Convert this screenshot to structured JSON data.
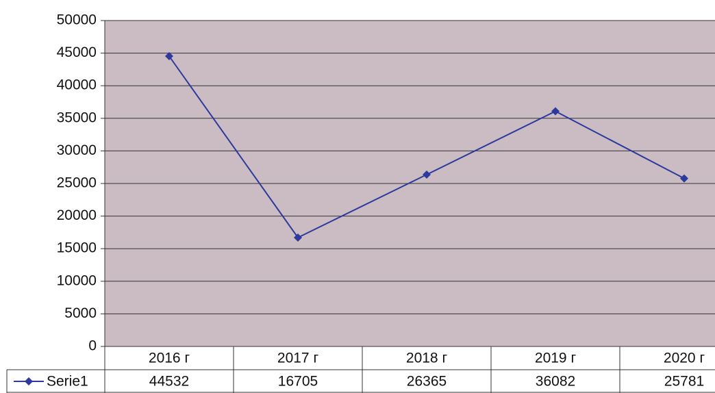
{
  "chart_data": {
    "type": "line",
    "categories": [
      "2016 г",
      "2017 г",
      "2018 г",
      "2019 г",
      "2020 г"
    ],
    "series": [
      {
        "name": "Serie1",
        "color": "#2b3a9c",
        "values": [
          44532,
          16705,
          26365,
          36082,
          25781
        ]
      }
    ],
    "ylim": [
      0,
      50000
    ],
    "yticks": [
      0,
      5000,
      10000,
      15000,
      20000,
      25000,
      30000,
      35000,
      40000,
      45000,
      50000
    ],
    "grid": true,
    "legend": "bottom-left"
  }
}
